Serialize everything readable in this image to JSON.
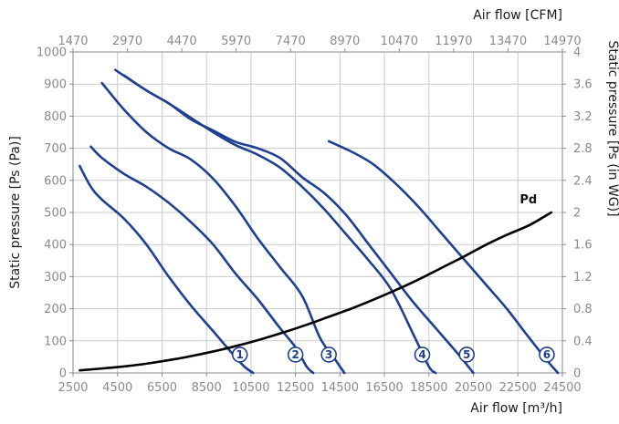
{
  "chart_data": {
    "type": "line",
    "title": "",
    "xlabel": "Air flow [m³/h]",
    "x2label": "Air flow [CFM]",
    "ylabel": "Static pressure [Ps (Pa)]",
    "y2label": "Static pressure [Ps (in WG)]",
    "xlim": [
      2500,
      24500
    ],
    "ylim": [
      0,
      1000
    ],
    "x_ticks": [
      "2500",
      "4500",
      "6500",
      "8500",
      "10500",
      "12500",
      "14500",
      "16500",
      "18500",
      "20500",
      "22500",
      "24500"
    ],
    "x2_ticks": [
      "1470",
      "2970",
      "4470",
      "5970",
      "7470",
      "8970",
      "10470",
      "11970",
      "13470",
      "14970"
    ],
    "y_ticks": [
      "0",
      "100",
      "200",
      "300",
      "400",
      "500",
      "600",
      "700",
      "800",
      "900",
      "1000"
    ],
    "y2_ticks": [
      "0",
      "0.4",
      "0.8",
      "1.2",
      "1.6",
      "2",
      "2.4",
      "2.8",
      "3.2",
      "3.6",
      "4"
    ],
    "grid": true,
    "colors": {
      "curve": "#1f3f8f",
      "pd": "#000000"
    },
    "series": [
      {
        "name": "1",
        "points": [
          [
            2800,
            645
          ],
          [
            3300,
            580
          ],
          [
            3800,
            540
          ],
          [
            4800,
            480
          ],
          [
            5800,
            400
          ],
          [
            6800,
            300
          ],
          [
            7800,
            210
          ],
          [
            8800,
            130
          ],
          [
            9600,
            65
          ],
          [
            10200,
            20
          ],
          [
            10600,
            0
          ]
        ]
      },
      {
        "name": "2",
        "points": [
          [
            3300,
            705
          ],
          [
            3800,
            670
          ],
          [
            4800,
            620
          ],
          [
            5800,
            580
          ],
          [
            6800,
            530
          ],
          [
            7800,
            470
          ],
          [
            8800,
            400
          ],
          [
            9800,
            310
          ],
          [
            10800,
            230
          ],
          [
            11800,
            140
          ],
          [
            12500,
            80
          ],
          [
            13000,
            20
          ],
          [
            13300,
            0
          ]
        ]
      },
      {
        "name": "3",
        "points": [
          [
            3800,
            903
          ],
          [
            4800,
            820
          ],
          [
            5800,
            750
          ],
          [
            6800,
            700
          ],
          [
            7800,
            665
          ],
          [
            8800,
            605
          ],
          [
            9800,
            520
          ],
          [
            10800,
            420
          ],
          [
            11800,
            330
          ],
          [
            12800,
            240
          ],
          [
            13600,
            110
          ],
          [
            14300,
            40
          ],
          [
            14700,
            0
          ]
        ]
      },
      {
        "name": "4",
        "points": [
          [
            4400,
            944
          ],
          [
            5800,
            880
          ],
          [
            6800,
            840
          ],
          [
            7800,
            795
          ],
          [
            8800,
            750
          ],
          [
            9800,
            710
          ],
          [
            10800,
            680
          ],
          [
            11800,
            640
          ],
          [
            12800,
            580
          ],
          [
            13800,
            510
          ],
          [
            14800,
            430
          ],
          [
            15800,
            350
          ],
          [
            16800,
            260
          ],
          [
            17800,
            120
          ],
          [
            18500,
            20
          ],
          [
            18800,
            0
          ]
        ]
      },
      {
        "name": "5",
        "points": [
          [
            4800,
            927
          ],
          [
            5800,
            880
          ],
          [
            6800,
            840
          ],
          [
            7800,
            790
          ],
          [
            8800,
            755
          ],
          [
            9800,
            720
          ],
          [
            10800,
            700
          ],
          [
            11800,
            670
          ],
          [
            12800,
            610
          ],
          [
            13800,
            560
          ],
          [
            14800,
            490
          ],
          [
            15800,
            400
          ],
          [
            16800,
            310
          ],
          [
            17800,
            220
          ],
          [
            18800,
            140
          ],
          [
            19800,
            60
          ],
          [
            20500,
            0
          ]
        ]
      },
      {
        "name": "6",
        "points": [
          [
            14000,
            722
          ],
          [
            15000,
            690
          ],
          [
            16000,
            650
          ],
          [
            17000,
            590
          ],
          [
            18000,
            520
          ],
          [
            19000,
            440
          ],
          [
            20000,
            360
          ],
          [
            21000,
            280
          ],
          [
            22000,
            200
          ],
          [
            23000,
            110
          ],
          [
            23800,
            40
          ],
          [
            24300,
            0
          ]
        ]
      }
    ],
    "markers": [
      {
        "label": "1",
        "x": 10000,
        "y": 57
      },
      {
        "label": "2",
        "x": 12500,
        "y": 57
      },
      {
        "label": "3",
        "x": 14000,
        "y": 57
      },
      {
        "label": "4",
        "x": 18200,
        "y": 57
      },
      {
        "label": "5",
        "x": 20200,
        "y": 57
      },
      {
        "label": "6",
        "x": 23800,
        "y": 57
      }
    ],
    "pd": {
      "name": "Pd",
      "points": [
        [
          2800,
          8
        ],
        [
          4000,
          15
        ],
        [
          5000,
          22
        ],
        [
          6000,
          31
        ],
        [
          7000,
          42
        ],
        [
          8000,
          55
        ],
        [
          9000,
          70
        ],
        [
          10000,
          87
        ],
        [
          11000,
          106
        ],
        [
          12000,
          127
        ],
        [
          13000,
          150
        ],
        [
          14000,
          175
        ],
        [
          15000,
          200
        ],
        [
          16000,
          228
        ],
        [
          17000,
          258
        ],
        [
          18000,
          290
        ],
        [
          19000,
          325
        ],
        [
          20000,
          360
        ],
        [
          21000,
          397
        ],
        [
          22000,
          430
        ],
        [
          23000,
          460
        ],
        [
          24000,
          500
        ]
      ]
    }
  }
}
